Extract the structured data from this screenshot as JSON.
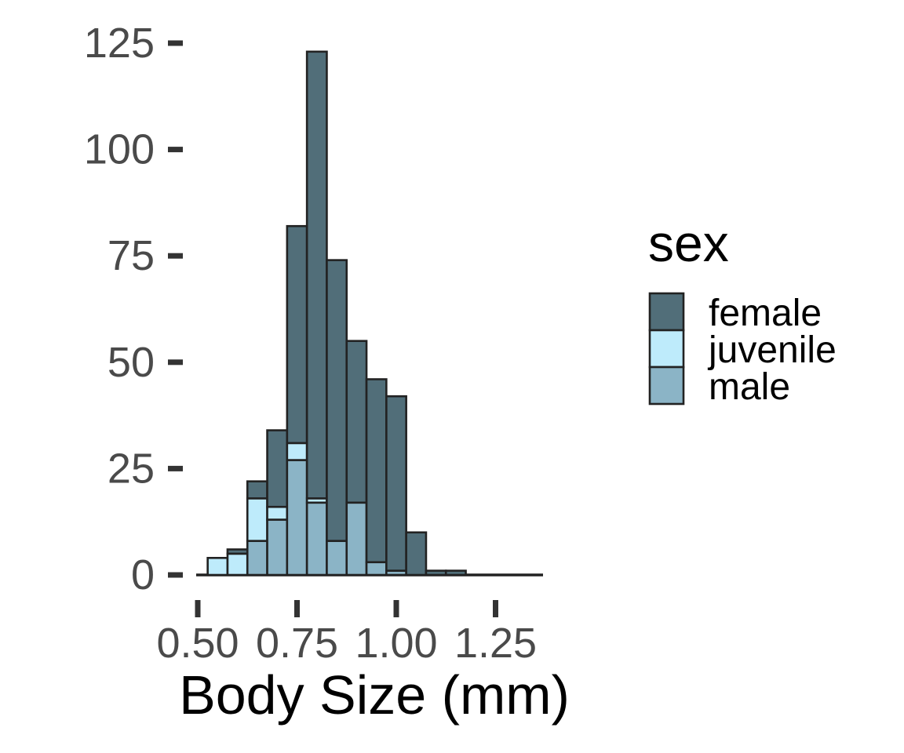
{
  "chart_data": {
    "type": "bar",
    "subtype": "stacked-histogram",
    "title": "",
    "xlabel": "Body Size (mm)",
    "ylabel": "",
    "legend_title": "sex",
    "legend_position": "right",
    "legend_entries": [
      "female",
      "juvenile",
      "male"
    ],
    "grid": "off",
    "x_tick_labels": [
      "0.50",
      "0.75",
      "1.00",
      "1.25"
    ],
    "x_tick_values": [
      0.5,
      0.75,
      1.0,
      1.25
    ],
    "y_tick_labels": [
      "0",
      "25",
      "50",
      "75",
      "100",
      "125"
    ],
    "y_tick_values": [
      0,
      25,
      50,
      75,
      100,
      125
    ],
    "ylim": [
      0,
      125
    ],
    "xlim": [
      0.5,
      1.37
    ],
    "bin_width": 0.05,
    "bin_centers": [
      0.55,
      0.6,
      0.65,
      0.7,
      0.75,
      0.8,
      0.85,
      0.9,
      0.95,
      1.0,
      1.05,
      1.1,
      1.15
    ],
    "stack_order_bottom_to_top": [
      "male",
      "juvenile",
      "female"
    ],
    "series": [
      {
        "name": "male",
        "color": "#8BB4C6",
        "values": [
          0,
          0,
          8,
          13,
          27,
          17,
          8,
          17,
          3,
          1,
          0,
          0,
          0
        ]
      },
      {
        "name": "juvenile",
        "color": "#BEEBFB",
        "values": [
          4,
          5,
          10,
          3,
          4,
          1,
          0,
          0,
          0,
          0,
          0,
          0,
          0
        ]
      },
      {
        "name": "female",
        "color": "#516E79",
        "values": [
          0,
          1,
          4,
          18,
          51,
          105,
          66,
          38,
          43,
          41,
          10,
          1,
          1
        ]
      }
    ],
    "bin_totals": [
      4,
      6,
      22,
      34,
      82,
      123,
      74,
      55,
      46,
      42,
      10,
      1,
      1
    ],
    "total_n": 500
  },
  "colors": {
    "female": "#516E79",
    "juvenile": "#BEEBFB",
    "male": "#8BB4C6",
    "bar_outline": "#222222",
    "axis_line": "#222222",
    "tick_mark": "#333333",
    "tick_label": "#4A4A4A",
    "axis_title": "#000000",
    "legend_text": "#000000",
    "background": "#FFFFFF"
  }
}
